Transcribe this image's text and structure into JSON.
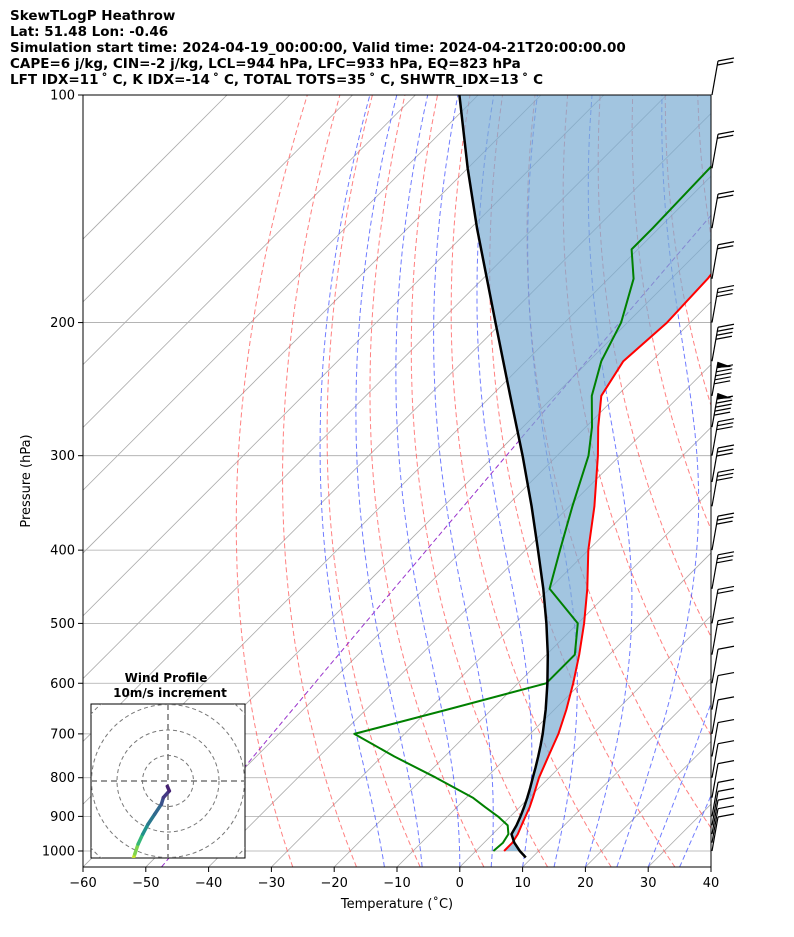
{
  "header": {
    "line1": "SkewTLogP Heathrow",
    "line2": "Lat: 51.48   Lon: -0.46",
    "line3": "Simulation start time: 2024-04-19_00:00:00, Valid time: 2024-04-21T20:00:00.00",
    "line4": "CAPE=6 j/kg, CIN=-2 j/kg, LCL=944 hPa, LFC=933 hPa, EQ=823 hPa",
    "line5": "LFT IDX=11 ˚ C, K IDX=-14 ˚ C, TOTAL TOTS=35 ˚ C, SHWTR_IDX=13 ˚ C"
  },
  "colors": {
    "temperature": "#ff0000",
    "dewpoint": "#008000",
    "parcel": "#000000",
    "cape_fill": "#7aadd3",
    "dry_adiabat": "#ff5555",
    "moist_adiabat": "#3344ff",
    "isotherm": "#aaaaaa",
    "mixing_ratio": "#9933cc"
  },
  "chart_data": {
    "type": "line",
    "xlabel": "Temperature (˚C)",
    "ylabel": "Pressure (hPa)",
    "xlim": [
      -60,
      40
    ],
    "ylim": [
      1050,
      100
    ],
    "yscale": "log",
    "x_ticks": [
      "−60",
      "−50",
      "−40",
      "−30",
      "−20",
      "−10",
      "0",
      "10",
      "20",
      "30",
      "40"
    ],
    "x_tick_values": [
      -60,
      -50,
      -40,
      -30,
      -20,
      -10,
      0,
      10,
      20,
      30,
      40
    ],
    "y_ticks": [
      "1000",
      "900",
      "800",
      "700",
      "600",
      "500",
      "400",
      "300",
      "200",
      "100"
    ],
    "y_tick_values": [
      1000,
      900,
      800,
      700,
      600,
      500,
      400,
      300,
      200,
      100
    ],
    "grid": true,
    "skew": "45 degree isotherms",
    "series": [
      {
        "key": "temperature",
        "pressure": [
          1000,
          975,
          950,
          925,
          900,
          875,
          850,
          800,
          750,
          700,
          650,
          600,
          550,
          500,
          450,
          400,
          350,
          300,
          275,
          250,
          225,
          200,
          175,
          150,
          125,
          110,
          100
        ],
        "temp": [
          4.5,
          4.5,
          4.0,
          3.2,
          2.4,
          1.6,
          0.6,
          -1.6,
          -3.5,
          -5.5,
          -8.1,
          -11.2,
          -14.8,
          -19.0,
          -24.0,
          -30.0,
          -36.0,
          -43.5,
          -48.0,
          -52.5,
          -54.5,
          -53.7,
          -54.2,
          -56.0,
          -58.5,
          -59.8,
          -61.0
        ]
      },
      {
        "key": "dewpoint",
        "pressure": [
          1000,
          975,
          950,
          925,
          900,
          875,
          850,
          800,
          750,
          700,
          650,
          600,
          550,
          500,
          450,
          400,
          350,
          300,
          275,
          250,
          225,
          200,
          175,
          160,
          150,
          125,
          100
        ],
        "temp": [
          2.8,
          3.0,
          2.5,
          1.0,
          -2.0,
          -5.5,
          -9.0,
          -18.0,
          -28.0,
          -38.0,
          -27.0,
          -15.5,
          -15.5,
          -20.0,
          -30.0,
          -34.5,
          -39.5,
          -45.0,
          -49.0,
          -54.0,
          -58.0,
          -61.0,
          -66.0,
          -71.0,
          -71.0,
          -71.5,
          -72.0
        ]
      },
      {
        "key": "parcel",
        "pressure": [
          1020,
          1000,
          975,
          950,
          925,
          900,
          875,
          850,
          825,
          800,
          775,
          750,
          725,
          700,
          650,
          600,
          550,
          500,
          450,
          400,
          350,
          300,
          250,
          200,
          150,
          125,
          100
        ],
        "temp": [
          9.0,
          7.0,
          4.8,
          3.0,
          2.4,
          1.6,
          0.7,
          -0.3,
          -1.4,
          -2.6,
          -3.8,
          -5.1,
          -6.5,
          -8.0,
          -11.4,
          -15.3,
          -19.8,
          -25.0,
          -31.0,
          -38.0,
          -46.0,
          -55.5,
          -67.0,
          -81.0,
          -99.0,
          -110.0,
          -123.0
        ]
      }
    ],
    "wind_barbs": {
      "pressure": [
        100,
        125,
        150,
        175,
        200,
        225,
        250,
        275,
        300,
        325,
        350,
        400,
        450,
        500,
        550,
        600,
        650,
        700,
        750,
        800,
        850,
        900,
        925,
        950,
        975,
        1000
      ],
      "barbs": [
        2,
        2,
        2,
        2,
        3,
        4,
        5,
        5,
        3,
        3,
        3,
        3,
        3,
        2,
        2,
        1,
        1,
        1,
        1,
        1,
        1,
        1,
        1,
        1,
        1,
        1
      ],
      "pennants": [
        0,
        0,
        0,
        0,
        0,
        0,
        1,
        1,
        0,
        0,
        0,
        0,
        0,
        0,
        0,
        0,
        0,
        0,
        0,
        0,
        0,
        0,
        0,
        0,
        0,
        0
      ]
    },
    "inset": {
      "title": "Wind Profile",
      "subtitle": "10m/s increment",
      "rings": 3,
      "hodograph_u": [
        -5.5,
        -5.0,
        -4.5,
        -3.8,
        -3.0,
        -2.0,
        -1.0,
        -0.7,
        0.2,
        -0.1
      ],
      "hodograph_v": [
        -12.5,
        -11.0,
        -9.5,
        -8.0,
        -6.5,
        -5.0,
        -3.5,
        -2.5,
        -1.5,
        -0.8
      ]
    }
  }
}
